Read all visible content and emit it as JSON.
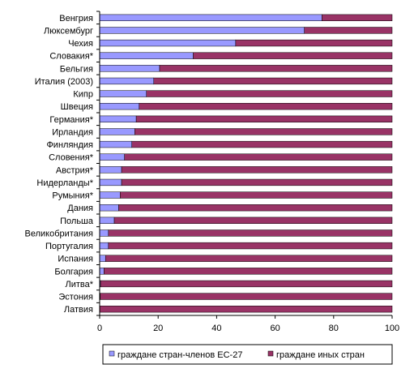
{
  "chart_data": {
    "type": "bar",
    "orientation": "horizontal",
    "stacked": true,
    "title": "",
    "xlabel": "",
    "ylabel": "",
    "xlim": [
      0,
      100
    ],
    "xticks": [
      0,
      20,
      40,
      60,
      80,
      100
    ],
    "grid": false,
    "legend_position": "bottom",
    "categories": [
      "Венгрия",
      "Люксембург",
      "Чехия",
      "Словакия*",
      "Бельгия",
      "Италия (2003)",
      "Кипр",
      "Швеция",
      "Германия*",
      "Ирландия",
      "Финляндия",
      "Словения*",
      "Австрия*",
      "Нидерланды*",
      "Румыния*",
      "Дания",
      "Польша",
      "Великобритания",
      "Португалия",
      "Испания",
      "Болгария",
      "Литва*",
      "Эстония",
      "Латвия"
    ],
    "series": [
      {
        "name": "граждане стран-членов ЕС-27",
        "color": "#9999FF",
        "values": [
          76,
          70,
          46.5,
          32,
          20.5,
          18.5,
          16,
          13.5,
          12.5,
          12,
          11,
          8.5,
          7.5,
          7.5,
          7,
          6.5,
          5,
          3,
          3,
          2,
          1.5,
          0.3,
          0.2,
          0.1
        ]
      },
      {
        "name": "граждане иных стран",
        "color": "#993366",
        "values": [
          24,
          30,
          53.5,
          68,
          79.5,
          81.5,
          84,
          86.5,
          87.5,
          88,
          89,
          91.5,
          92.5,
          92.5,
          93,
          93.5,
          95,
          97,
          97,
          98,
          98.5,
          99.7,
          99.8,
          99.9
        ]
      }
    ]
  }
}
